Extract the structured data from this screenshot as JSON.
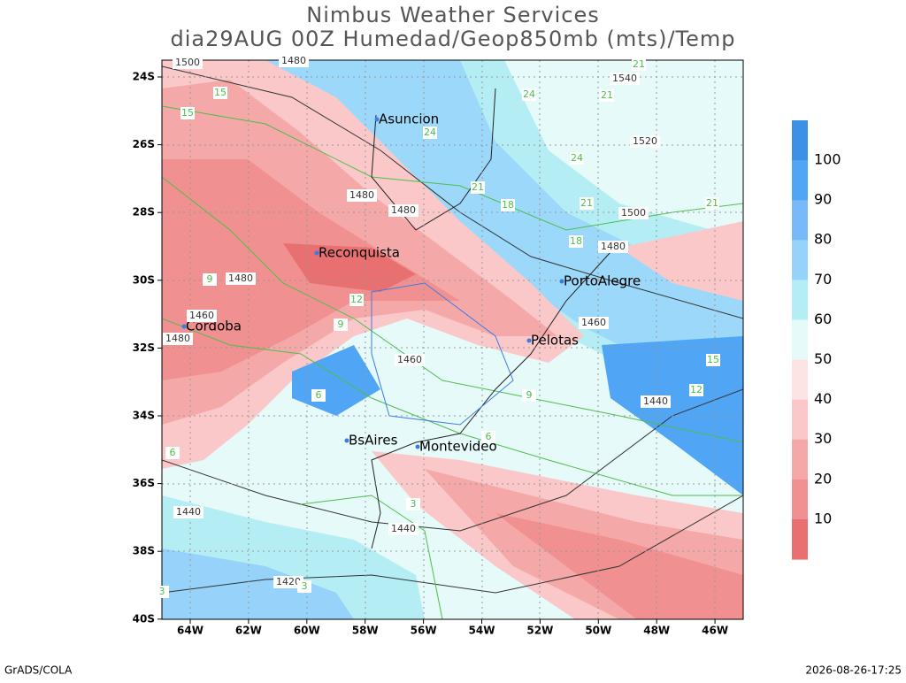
{
  "header": {
    "title": "Nimbus Weather Services",
    "subtitle": "dia29AUG 00Z Humedad/Geop850mb (mts)/Temp"
  },
  "map": {
    "lon_labels": [
      "64W",
      "62W",
      "60W",
      "58W",
      "56W",
      "54W",
      "52W",
      "50W",
      "48W",
      "46W"
    ],
    "lat_labels": [
      "24S",
      "26S",
      "28S",
      "30S",
      "32S",
      "34S",
      "36S",
      "38S",
      "40S"
    ],
    "cities": [
      "Asuncion",
      "Reconquista",
      "PortoAlegre",
      "Cordoba",
      "Pelotas",
      "BsAires",
      "Montevideo"
    ],
    "geopotential_labels": [
      "1500",
      "1480",
      "1540",
      "1520",
      "1480",
      "1480",
      "1500",
      "1480",
      "1480",
      "1460",
      "1460",
      "1480",
      "1460",
      "1440",
      "1440",
      "1440",
      "1420"
    ],
    "temperature_labels": [
      "21",
      "24",
      "21",
      "15",
      "15",
      "24",
      "24",
      "21",
      "18",
      "21",
      "21",
      "18",
      "12",
      "9",
      "9",
      "6",
      "9",
      "15",
      "12",
      "6",
      "6",
      "3",
      "3",
      "3"
    ]
  },
  "colorbar": {
    "labels": [
      "100",
      "90",
      "80",
      "70",
      "60",
      "50",
      "40",
      "30",
      "20",
      "10"
    ]
  },
  "footer": {
    "left": "GrADS/COLA",
    "right": "2026-08-26-17:25"
  }
}
